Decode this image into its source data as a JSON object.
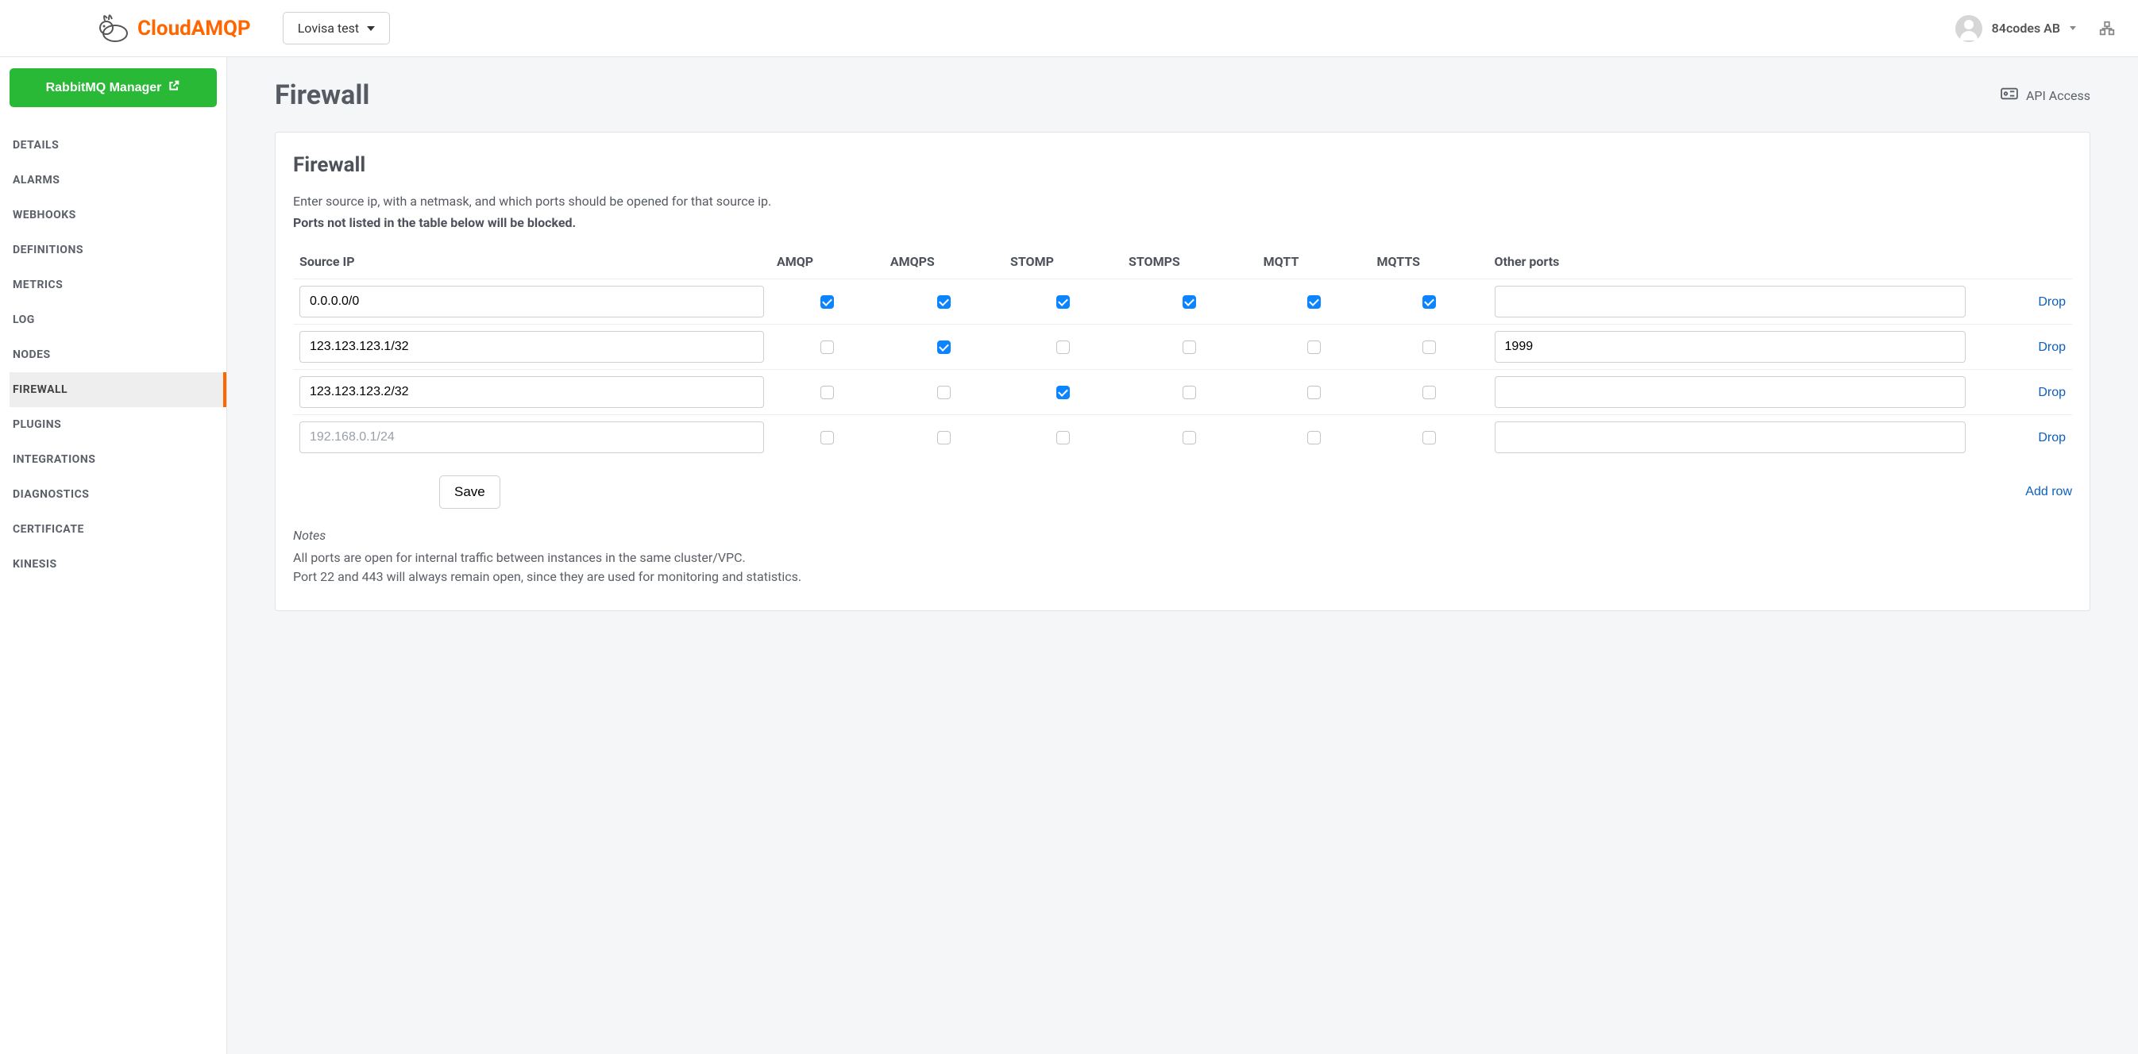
{
  "brand": {
    "name": "CloudAMQP"
  },
  "topbar": {
    "instance_selector_label": "Lovisa test",
    "account_name": "84codes AB"
  },
  "sidebar": {
    "rmq_button_label": "RabbitMQ Manager",
    "items": [
      {
        "label": "DETAILS",
        "key": "details",
        "active": false
      },
      {
        "label": "ALARMS",
        "key": "alarms",
        "active": false
      },
      {
        "label": "WEBHOOKS",
        "key": "webhooks",
        "active": false
      },
      {
        "label": "DEFINITIONS",
        "key": "definitions",
        "active": false
      },
      {
        "label": "METRICS",
        "key": "metrics",
        "active": false
      },
      {
        "label": "LOG",
        "key": "log",
        "active": false
      },
      {
        "label": "NODES",
        "key": "nodes",
        "active": false
      },
      {
        "label": "FIREWALL",
        "key": "firewall",
        "active": true
      },
      {
        "label": "PLUGINS",
        "key": "plugins",
        "active": false
      },
      {
        "label": "INTEGRATIONS",
        "key": "integrations",
        "active": false
      },
      {
        "label": "DIAGNOSTICS",
        "key": "diagnostics",
        "active": false
      },
      {
        "label": "CERTIFICATE",
        "key": "certificate",
        "active": false
      },
      {
        "label": "KINESIS",
        "key": "kinesis",
        "active": false
      }
    ]
  },
  "page": {
    "title": "Firewall",
    "api_access_label": "API Access",
    "card_title": "Firewall",
    "desc_line": "Enter source ip, with a netmask, and which ports should be opened for that source ip.",
    "desc_bold": "Ports not listed in the table below will be blocked.",
    "table": {
      "headers": {
        "source_ip": "Source IP",
        "port_cols": [
          "AMQP",
          "AMQPS",
          "STOMP",
          "STOMPS",
          "MQTT",
          "MQTTS"
        ],
        "other_ports": "Other ports"
      },
      "placeholder_ip": "192.168.0.1/24",
      "rows": [
        {
          "ip": "0.0.0.0/0",
          "ports": [
            true,
            true,
            true,
            true,
            true,
            true
          ],
          "other": ""
        },
        {
          "ip": "123.123.123.1/32",
          "ports": [
            false,
            true,
            false,
            false,
            false,
            false
          ],
          "other": "1999"
        },
        {
          "ip": "123.123.123.2/32",
          "ports": [
            false,
            false,
            true,
            false,
            false,
            false
          ],
          "other": ""
        },
        {
          "ip": "",
          "ports": [
            false,
            false,
            false,
            false,
            false,
            false
          ],
          "other": ""
        }
      ],
      "drop_label": "Drop",
      "save_label": "Save",
      "add_row_label": "Add row"
    },
    "notes": {
      "title": "Notes",
      "line1": "All ports are open for internal traffic between instances in the same cluster/VPC.",
      "line2": "Port 22 and 443 will always remain open, since they are used for monitoring and statistics."
    }
  },
  "colors": {
    "brand_orange": "#ff6600",
    "green": "#2ab936",
    "link_blue": "#0d5fbf",
    "checkbox_blue": "#0a84ff",
    "text_muted": "#5b6069",
    "heading": "#555a63",
    "border": "#e3e3e7",
    "page_bg": "#f5f6f7"
  }
}
